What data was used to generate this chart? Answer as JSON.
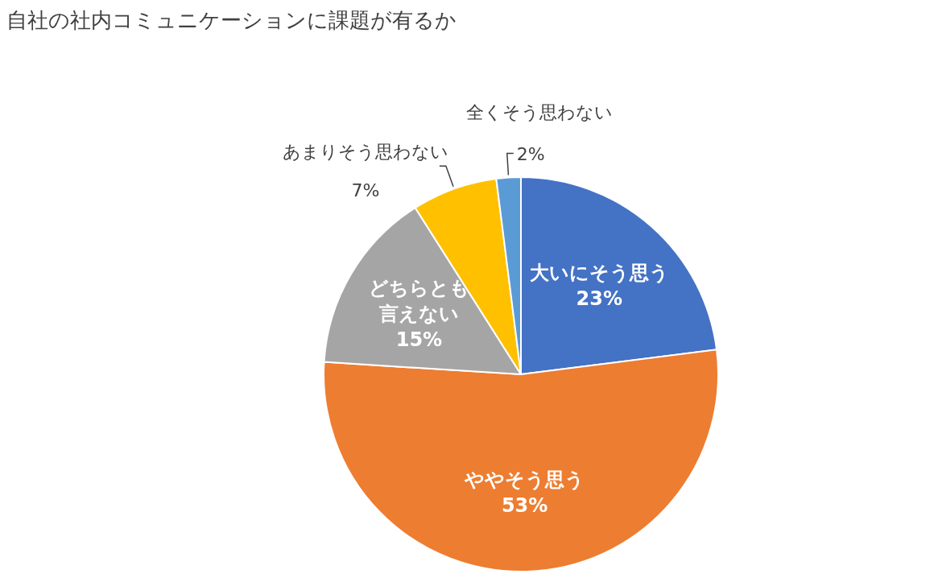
{
  "chart_data": {
    "type": "pie",
    "title": "自社の社内コミュニケーションに課題が有るか",
    "categories": [
      "大いにそう思う",
      "ややそう思う",
      "どちらとも言えない",
      "あまりそう思わない",
      "全くそう思わない"
    ],
    "values": [
      23,
      53,
      15,
      7,
      2
    ],
    "value_labels": [
      "23%",
      "53%",
      "15%",
      "7%",
      "2%"
    ],
    "colors": [
      "#4472c4",
      "#ed7d31",
      "#a5a5a5",
      "#ffc000",
      "#5b9bd5"
    ],
    "legend": false
  }
}
